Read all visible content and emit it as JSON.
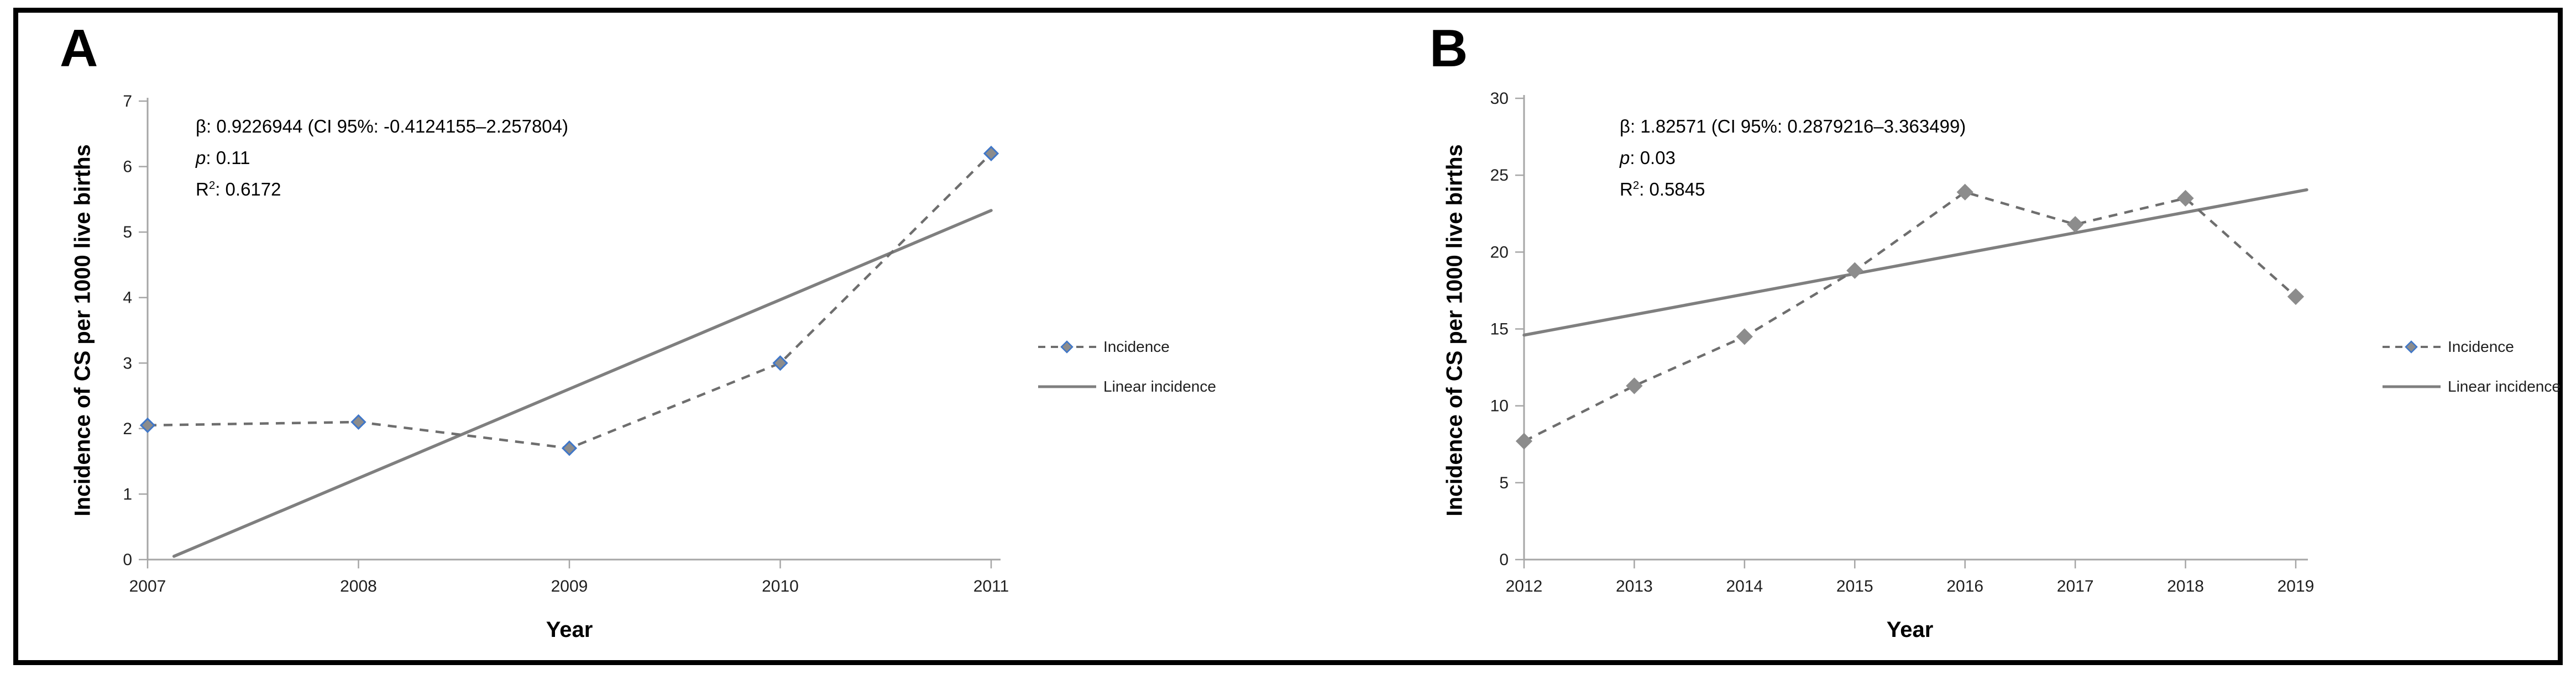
{
  "figure": {
    "background": "#ffffff",
    "border_color": "#000000"
  },
  "colors": {
    "axis": "#a6a6a6",
    "tick_text": "#1f1f1f",
    "dashed_line": "#6e6e6e",
    "trend_line": "#7f7f7f",
    "marker_fill": "#8c8c8c",
    "marker_stroke_a": "#4077c8",
    "marker_stroke_b": "#8c8c8c",
    "legend_marker_stroke": "#4077c8",
    "text": "#000000"
  },
  "chart_data": [
    {
      "type": "line",
      "panel_label": "A",
      "x": [
        2007,
        2008,
        2009,
        2010,
        2011
      ],
      "xlabel": "Year",
      "ylabel": "Incidence of CS per 1000 live births",
      "ylim": [
        0,
        7
      ],
      "yticks": [
        0,
        1,
        2,
        3,
        4,
        5,
        6,
        7
      ],
      "grid": false,
      "legend_position": "right",
      "series": [
        {
          "name": "Incidence",
          "style": "dashed-diamond",
          "values": [
            2.05,
            2.1,
            1.7,
            3.0,
            6.2
          ]
        },
        {
          "name": "Linear incidence",
          "style": "solid-trend",
          "trend_x": [
            2007.125,
            2011
          ],
          "trend_y": [
            0.05,
            5.33
          ]
        }
      ],
      "annotation": {
        "line1": "β: 0.9226944 (CI 95%: -0.4124155–2.257804)",
        "p_prefix": "p",
        "p_rest": ": 0.11",
        "r_prefix": "R",
        "r_sup": "2",
        "r_rest": ": 0.6172"
      },
      "legend": [
        "Incidence",
        "Linear incidence"
      ]
    },
    {
      "type": "line",
      "panel_label": "B",
      "x": [
        2012,
        2013,
        2014,
        2015,
        2016,
        2017,
        2018,
        2019
      ],
      "xlabel": "Year",
      "ylabel": "Incidence of CS per 1000 live births",
      "ylim": [
        0,
        30
      ],
      "yticks": [
        0,
        5,
        10,
        15,
        20,
        25,
        30
      ],
      "grid": false,
      "legend_position": "right",
      "series": [
        {
          "name": "Incidence",
          "style": "dashed-diamond",
          "values": [
            7.7,
            11.3,
            14.5,
            18.8,
            23.9,
            21.8,
            23.5,
            17.1
          ]
        },
        {
          "name": "Linear incidence",
          "style": "solid-trend",
          "trend_x": [
            2012,
            2019.1
          ],
          "trend_y": [
            14.6,
            24.05
          ]
        }
      ],
      "annotation": {
        "line1": "β: 1.82571 (CI 95%: 0.2879216–3.363499)",
        "p_prefix": "p",
        "p_rest": ": 0.03",
        "r_prefix": "R",
        "r_sup": "2",
        "r_rest": ": 0.5845"
      },
      "legend": [
        "Incidence",
        "Linear incidence"
      ]
    }
  ]
}
